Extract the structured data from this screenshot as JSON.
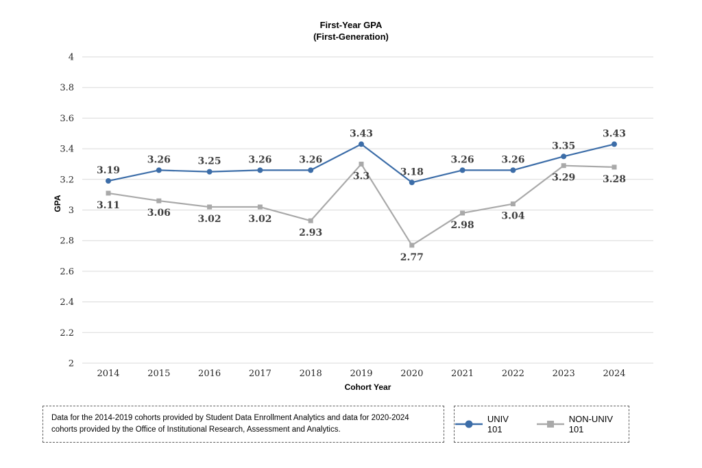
{
  "title": {
    "line1": "First-Year GPA",
    "line2": "(First-Generation)"
  },
  "chart_data": {
    "type": "line",
    "title": "First-Year GPA (First-Generation)",
    "xlabel": "Cohort Year",
    "ylabel": "GPA",
    "ylim": [
      2,
      4
    ],
    "ytick_step": 0.2,
    "grid": true,
    "legend_position": "bottom-right dashed box",
    "categories": [
      "2014",
      "2015",
      "2016",
      "2017",
      "2018",
      "2019",
      "2020",
      "2021",
      "2022",
      "2023",
      "2024"
    ],
    "series": [
      {
        "name": "UNIV 101",
        "color": "#3c6da8",
        "marker": "circle",
        "label_position": "above",
        "values": [
          3.19,
          3.26,
          3.25,
          3.26,
          3.26,
          3.43,
          3.18,
          3.26,
          3.26,
          3.35,
          3.43
        ],
        "labels": [
          "3.19",
          "3.26",
          "3.25",
          "3.26",
          "3.26",
          "3.43",
          "3.18",
          "3.26",
          "3.26",
          "3.35",
          "3.43"
        ]
      },
      {
        "name": "NON-UNIV 101",
        "color": "#a9a9a9",
        "marker": "square",
        "label_position": "below",
        "values": [
          3.11,
          3.06,
          3.02,
          3.02,
          2.93,
          3.3,
          2.77,
          2.98,
          3.04,
          3.29,
          3.28
        ],
        "labels": [
          "3.11",
          "3.06",
          "3.02",
          "3.02",
          "2.93",
          "3.3",
          "2.77",
          "2.98",
          "3.04",
          "3.29",
          "3.28"
        ]
      }
    ],
    "colors": {
      "gridline": "#d9d9d9",
      "tick_text": "#262626",
      "data_label_text": "#3f3f3f"
    }
  },
  "footnote": {
    "text": "Data for the 2014-2019 cohorts provided by Student Data Enrollment Analytics and data for 2020-2024 cohorts provided by the Office of Institutional Research, Assessment and Analytics."
  }
}
